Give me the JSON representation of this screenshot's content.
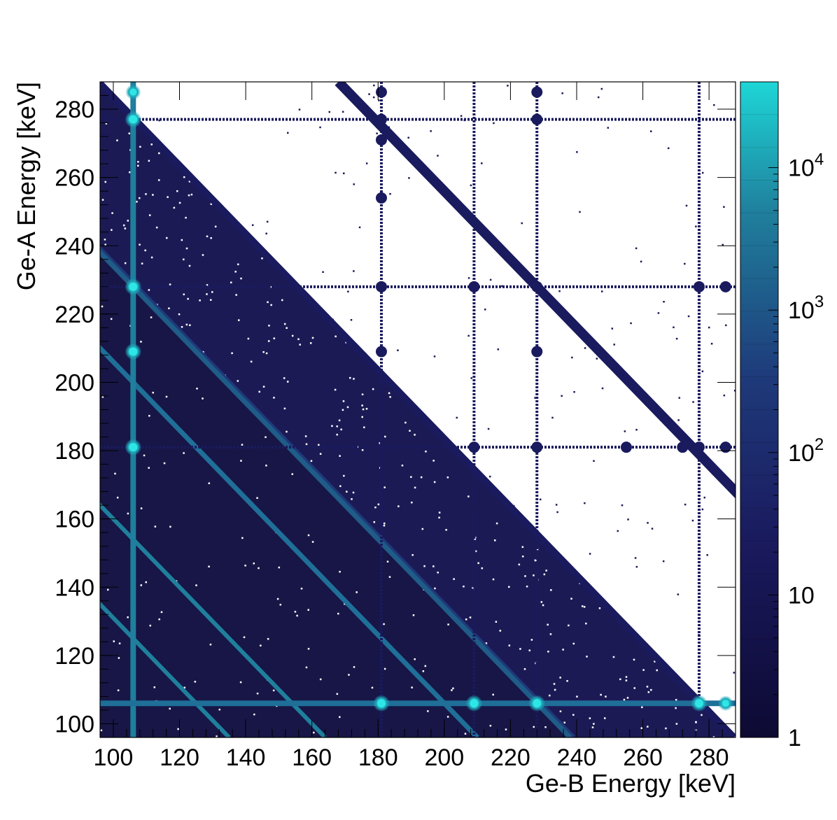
{
  "chart_data": {
    "type": "heatmap",
    "title": "",
    "xlabel": "Ge-B Energy [keV]",
    "ylabel": "Ge-A Energy [keV]",
    "xlim": [
      96,
      288
    ],
    "ylim": [
      96,
      288
    ],
    "x_ticks": [
      "100",
      "120",
      "140",
      "160",
      "180",
      "200",
      "220",
      "240",
      "260",
      "280"
    ],
    "y_ticks": [
      "100",
      "120",
      "140",
      "160",
      "180",
      "200",
      "220",
      "240",
      "260",
      "280"
    ],
    "colorbar": {
      "scale": "log",
      "range": [
        1,
        40000
      ],
      "labels": [
        {
          "base": "1",
          "exp": ""
        },
        {
          "base": "10",
          "exp": ""
        },
        {
          "base": "10",
          "exp": "2"
        },
        {
          "base": "10",
          "exp": "3"
        },
        {
          "base": "10",
          "exp": "4"
        }
      ],
      "colors": [
        "#0d0a33",
        "#1a1a5e",
        "#1e3a7a",
        "#1f7f9c",
        "#1ed6d6"
      ]
    },
    "gamma_lines_keV": [
      106,
      181,
      209,
      228,
      277,
      285
    ],
    "sum_peaks_keV": [
      334,
      383,
      456
    ],
    "background_color": "#18184a",
    "empty_color": "#ffffff"
  }
}
